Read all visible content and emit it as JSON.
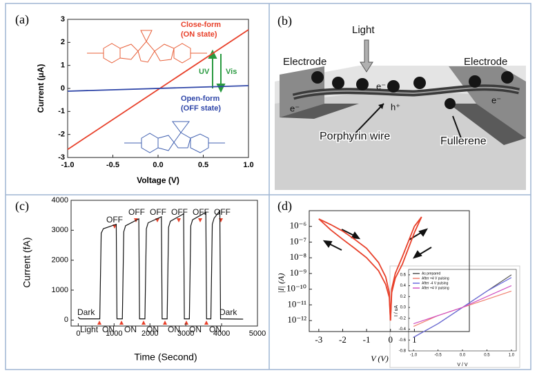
{
  "chart_data": [
    {
      "type": "line",
      "panel_label": "(a)",
      "x_label": "Voltage (V)",
      "y_label": "Current (μA)",
      "x": [
        -1,
        1
      ],
      "series": [
        {
          "color": "#e8402a",
          "values": [
            -2.65,
            2.55
          ]
        },
        {
          "color": "#2f46a8",
          "values": [
            -0.12,
            0.12
          ]
        }
      ],
      "xlim": [
        -1,
        1
      ],
      "ylim": [
        -3,
        3
      ],
      "xticks": [
        {
          "value": -1,
          "label": "-1.0"
        },
        {
          "value": -0.5,
          "label": "-0.5"
        },
        {
          "value": 0,
          "label": "0.0"
        },
        {
          "value": 0.5,
          "label": "0.5"
        },
        {
          "value": 1,
          "label": "1.0"
        }
      ],
      "yticks": [
        -3,
        -2,
        -1,
        0,
        1,
        2,
        3
      ],
      "annotations": [
        "Close-form",
        "(ON state)",
        "Open-form",
        "(OFF state)",
        "UV",
        "Vis"
      ]
    },
    {
      "type": "line",
      "panel_label": "(c)",
      "x_label": "Time (Second)",
      "y_label": "Current (fA)",
      "x": [
        0,
        30,
        60,
        600,
        640,
        700,
        1060,
        1080,
        1230,
        1270,
        1320,
        1690,
        1710,
        1860,
        1900,
        1950,
        2320,
        2340,
        2480,
        2520,
        2570,
        2940,
        2960,
        3100,
        3140,
        3190,
        3560,
        3580,
        3700,
        3740,
        3790,
        3950,
        3970,
        4600
      ],
      "series": [
        {
          "color": "#111111",
          "values": [
            100,
            50,
            40,
            40,
            2900,
            3050,
            3200,
            40,
            40,
            2950,
            3150,
            3380,
            40,
            40,
            3050,
            3250,
            3450,
            40,
            40,
            3100,
            3300,
            3550,
            40,
            40,
            3150,
            3350,
            3600,
            40,
            40,
            3200,
            3400,
            3650,
            40,
            30
          ]
        }
      ],
      "xlim": [
        -200,
        5000
      ],
      "ylim": [
        -200,
        4000
      ],
      "xticks": [
        0,
        1000,
        2000,
        3000,
        4000,
        5000
      ],
      "yticks": [
        0,
        1000,
        2000,
        3000,
        4000
      ],
      "annotations": [
        "Dark",
        "Light",
        "ON",
        "ON",
        "ON",
        "ON",
        "ON",
        "ON",
        "OFF",
        "OFF",
        "OFF",
        "OFF",
        "OFF",
        "OFF",
        "Dark"
      ]
    },
    {
      "type": "line",
      "panel_label": "(d)",
      "x_label": "V (V)",
      "y_label": "|I| (A)",
      "log_y": true,
      "x": [
        -3,
        -2.5,
        -2,
        -1.5,
        -1,
        -0.5,
        -0.2,
        -0.05,
        0,
        0.05,
        0.2,
        0.5,
        1,
        1.3
      ],
      "series": [
        {
          "color": "#e8402a",
          "values": [
            3e-06,
            1.3e-06,
            5e-07,
            1.5e-07,
            4e-08,
            5e-09,
            6e-10,
            6e-11,
            1e-12,
            6e-11,
            5e-10,
            4e-09,
            4e-07,
            4e-06
          ]
        },
        {
          "color": "#e8402a",
          "values": [
            3e-06,
            6e-07,
            1.5e-07,
            4e-08,
            1e-08,
            1.5e-09,
            2e-10,
            3e-11,
            1e-12,
            1e-10,
            1e-09,
            1.2e-08,
            1e-06,
            4e-06
          ]
        }
      ],
      "xlim": [
        -3.4,
        3.3
      ],
      "ylim": [
        2e-13,
        1e-05
      ],
      "xticks": [
        -3,
        -2,
        -1,
        0,
        1
      ],
      "yticks": [
        {
          "value": 1e-12,
          "label": "10⁻¹²"
        },
        {
          "value": 1e-11,
          "label": "10⁻¹¹"
        },
        {
          "value": 1e-10,
          "label": "10⁻¹⁰"
        },
        {
          "value": 1e-09,
          "label": "10⁻⁹"
        },
        {
          "value": 1e-08,
          "label": "10⁻⁸"
        },
        {
          "value": 1e-07,
          "label": "10⁻⁷"
        },
        {
          "value": 1e-06,
          "label": "10⁻⁶"
        }
      ]
    },
    {
      "type": "line",
      "x_label": "V / V",
      "y_label": "I / uA",
      "legend": "upper left",
      "x": [
        -1,
        -0.5,
        0,
        0.5,
        1
      ],
      "series": [
        {
          "name": "As prepared",
          "color": "#555555",
          "values": [
            -0.55,
            -0.3,
            0,
            0.3,
            0.6
          ]
        },
        {
          "name": "After +4 V pulsing",
          "color": "#f08070",
          "values": [
            -0.35,
            -0.15,
            0,
            0.15,
            0.3
          ]
        },
        {
          "name": "After -4 V pulsing",
          "color": "#6a6adf",
          "values": [
            -0.55,
            -0.3,
            0,
            0.3,
            0.55
          ]
        },
        {
          "name": "After +4 V pulsing",
          "color": "#d050c0",
          "values": [
            -0.3,
            -0.15,
            0,
            0.2,
            0.4
          ]
        }
      ],
      "xlim": [
        -1.1,
        1.1
      ],
      "ylim": [
        -0.8,
        0.7
      ],
      "xticks": [
        {
          "value": -1,
          "label": "-1.0"
        },
        {
          "value": -0.5,
          "label": "-0.5"
        },
        {
          "value": 0,
          "label": "0.0"
        },
        {
          "value": 0.5,
          "label": "0.5"
        },
        {
          "value": 1,
          "label": "1.0"
        }
      ],
      "yticks": [
        {
          "value": -0.8,
          "label": "-0.8"
        },
        {
          "value": -0.6,
          "label": "-0.6"
        },
        {
          "value": -0.4,
          "label": "-0.4"
        },
        {
          "value": -0.2,
          "label": "-0.2"
        },
        {
          "value": 0,
          "label": "0.0"
        },
        {
          "value": 0.2,
          "label": "0.2"
        },
        {
          "value": 0.4,
          "label": "0.4"
        },
        {
          "value": 0.6,
          "label": "0.6"
        }
      ]
    }
  ],
  "diagram": {
    "panel_label": "(b)",
    "labels": [
      "Light",
      "Electrode",
      "Electrode",
      "e⁻",
      "e⁻",
      "e⁻",
      "h⁺",
      "Porphyrin wire",
      "Fullerene"
    ]
  }
}
